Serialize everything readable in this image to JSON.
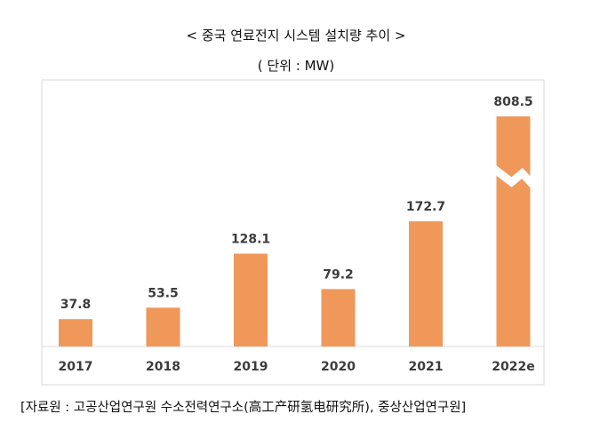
{
  "header": {
    "title": "< 중국 연료전지 시스템 설치량 추이 >",
    "unit": "( 단위 : MW)"
  },
  "footer": {
    "source": "[자료원 : 고공산업연구원 수소전력연구소(高工产研氢电研究所), 중상산업연구원]"
  },
  "colors": {
    "bar": "#f0975a",
    "frame": "#d9d9d9",
    "text": "#3c3c3c"
  },
  "chart_data": {
    "type": "bar",
    "title": "< 중국 연료전지 시스템 설치량 추이 >",
    "subtitle": "( 단위 : MW)",
    "xlabel": "",
    "ylabel": "",
    "categories": [
      "2017",
      "2018",
      "2019",
      "2020",
      "2021",
      "2022e"
    ],
    "values": [
      37.8,
      53.5,
      128.1,
      79.2,
      172.7,
      808.5
    ],
    "value_labels": [
      "37.8",
      "53.5",
      "128.1",
      "79.2",
      "172.7",
      "808.5"
    ],
    "ylim": [
      0,
      260
    ],
    "axis_break": {
      "category": "2022e",
      "note": "bar truncated with break marker"
    },
    "grid": false,
    "legend": "none"
  }
}
